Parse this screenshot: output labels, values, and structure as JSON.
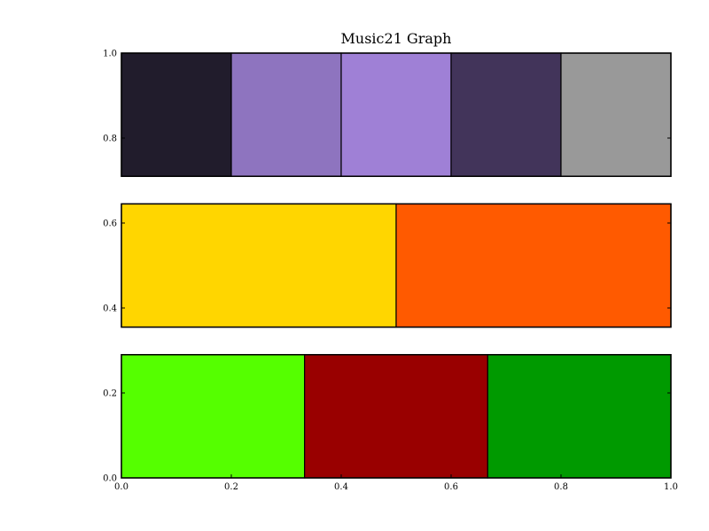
{
  "chart_data": {
    "type": "bar",
    "title": "Music21 Graph",
    "xlabel": "",
    "ylabel": "",
    "grid": false,
    "xlim": [
      0.0,
      1.0
    ],
    "ylim": [
      0.0,
      1.0
    ],
    "xticks": [
      "0.0",
      "0.2",
      "0.4",
      "0.6",
      "0.8",
      "1.0"
    ],
    "yticks": [
      {
        "value": 0.0,
        "label": "0.0"
      },
      {
        "value": 0.2,
        "label": "0.2"
      },
      {
        "value": 0.4,
        "label": "0.4"
      },
      {
        "value": 0.6,
        "label": "0.6"
      },
      {
        "value": 0.8,
        "label": "0.8"
      },
      {
        "value": 1.0,
        "label": "1.0"
      }
    ],
    "rows": [
      {
        "y_range": [
          0.71,
          1.0
        ],
        "segments": [
          {
            "x0": 0.0,
            "x1": 0.2,
            "color": "#211c2c"
          },
          {
            "x0": 0.2,
            "x1": 0.4,
            "color": "#8e74bf"
          },
          {
            "x0": 0.4,
            "x1": 0.6,
            "color": "#9f80d6"
          },
          {
            "x0": 0.6,
            "x1": 0.8,
            "color": "#42345a"
          },
          {
            "x0": 0.8,
            "x1": 1.0,
            "color": "#999999"
          }
        ]
      },
      {
        "y_range": [
          0.355,
          0.645
        ],
        "segments": [
          {
            "x0": 0.0,
            "x1": 0.5,
            "color": "#ffd600"
          },
          {
            "x0": 0.5,
            "x1": 1.0,
            "color": "#ff5a00"
          }
        ]
      },
      {
        "y_range": [
          0.0,
          0.29
        ],
        "segments": [
          {
            "x0": 0.0,
            "x1": 0.3333,
            "color": "#55ff00"
          },
          {
            "x0": 0.3333,
            "x1": 0.6667,
            "color": "#990000"
          },
          {
            "x0": 0.6667,
            "x1": 1.0,
            "color": "#009a00"
          }
        ]
      }
    ]
  }
}
